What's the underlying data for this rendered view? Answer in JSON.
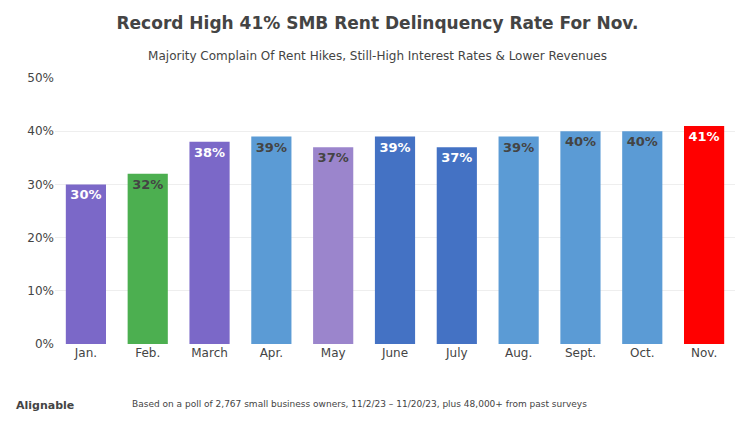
{
  "chart_data": {
    "type": "bar",
    "title": "Record High 41% SMB Rent Delinquency Rate For Nov.",
    "subtitle": "Majority Complain Of Rent Hikes, Still-High Interest Rates & Lower Revenues",
    "categories": [
      "Jan.",
      "Feb.",
      "March",
      "Apr.",
      "May",
      "June",
      "July",
      "Aug.",
      "Sept.",
      "Oct.",
      "Nov."
    ],
    "values": [
      30,
      32,
      38,
      39,
      37,
      39,
      37,
      39,
      40,
      40,
      41
    ],
    "value_labels": [
      "30%",
      "32%",
      "38%",
      "39%",
      "37%",
      "39%",
      "37%",
      "39%",
      "40%",
      "40%",
      "41%"
    ],
    "colors": [
      "#7B68C8",
      "#4CAF50",
      "#7B68C8",
      "#5B9BD5",
      "#9B85CC",
      "#4472C4",
      "#4472C4",
      "#5B9BD5",
      "#5B9BD5",
      "#5B9BD5",
      "#FF0000"
    ],
    "ylim": [
      0,
      50
    ],
    "yticks": [
      {
        "value": 0,
        "label": "0%"
      },
      {
        "value": 10,
        "label": "10%"
      },
      {
        "value": 20,
        "label": "20%"
      },
      {
        "value": 30,
        "label": "30%"
      },
      {
        "value": 40,
        "label": "40%"
      },
      {
        "value": 50,
        "label": "50%"
      }
    ],
    "grid": true,
    "data_labels": true,
    "annotations": [
      "Alignable",
      "Based on a poll of 2,767 small business owners, 11/2/23 – 11/20/23, plus 48,000+ from past surveys"
    ]
  }
}
